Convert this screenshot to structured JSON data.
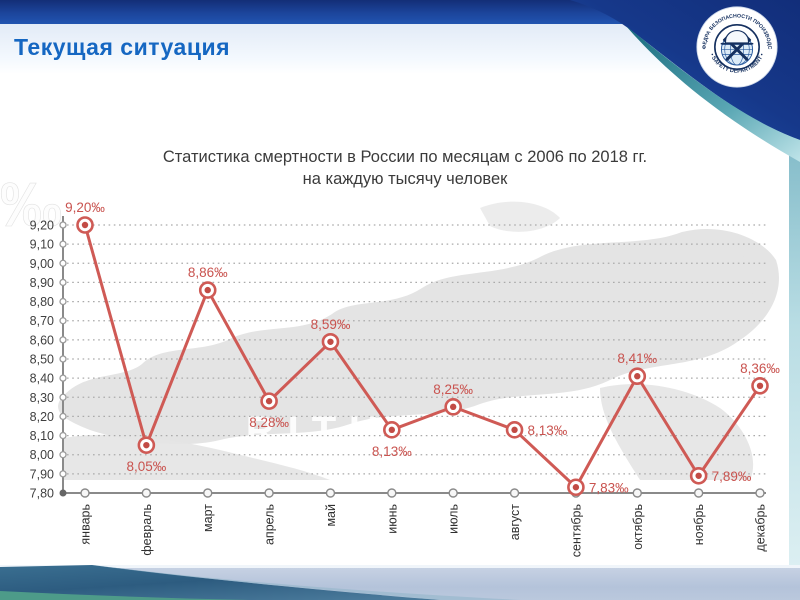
{
  "header": {
    "title": "Текущая ситуация"
  },
  "logo": {
    "arc_top": "КАФЕДРА БЕЗОПАСНОСТИ ПРОИЗВОДСТВ",
    "arc_bottom": "• SAFETY DEPARTMENT •"
  },
  "chart_data": {
    "type": "line",
    "title": "Статистика смертности в России по месяцам с 2006 по 2018 гг.",
    "subtitle": "на каждую тысячу человек",
    "categories": [
      "январь",
      "февраль",
      "март",
      "апрель",
      "май",
      "июнь",
      "июль",
      "август",
      "сентябрь",
      "октябрь",
      "ноябрь",
      "декабрь"
    ],
    "values": [
      9.2,
      8.05,
      8.86,
      8.28,
      8.59,
      8.13,
      8.25,
      8.13,
      7.83,
      8.41,
      7.89,
      8.36
    ],
    "point_labels": [
      "9,20‰",
      "8,05‰",
      "8,86‰",
      "8,28‰",
      "8,59‰",
      "8,13‰",
      "8,25‰",
      "8,13‰",
      "7,83‰",
      "8,41‰",
      "7,89‰",
      "8,36‰"
    ],
    "label_positions": [
      "above",
      "below",
      "above",
      "below",
      "above",
      "below",
      "above",
      "right",
      "right",
      "above",
      "right",
      "above"
    ],
    "ylim": [
      7.8,
      9.2
    ],
    "ytick_step": 0.1,
    "ytick_labels": [
      "9,20",
      "9,10",
      "9,00",
      "8,90",
      "8,80",
      "8,70",
      "8,60",
      "8,50",
      "8,40",
      "8,30",
      "8,20",
      "8,10",
      "8,00",
      "7,90",
      "7,80"
    ],
    "grid": "dotted-horizontal",
    "legend": "none",
    "line_color": "#cf5a55",
    "point_core_color": "#c24b45",
    "watermark": "RITUAL.RU",
    "unit_symbol": "‰"
  }
}
